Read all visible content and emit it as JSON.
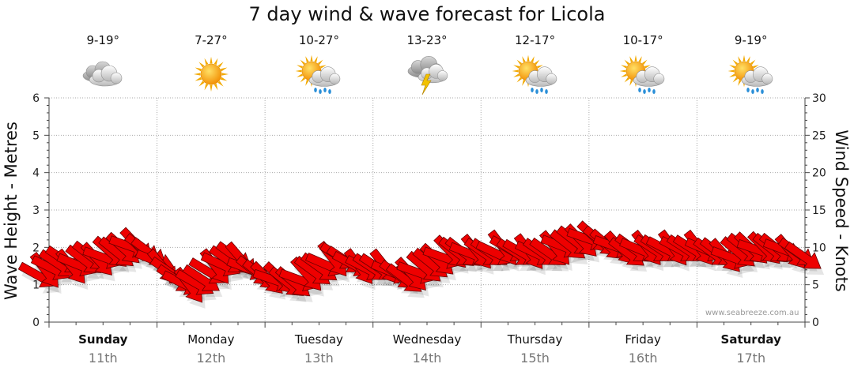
{
  "chart_data": {
    "type": "line",
    "title": "7 day wind & wave forecast for Licola",
    "ylabel_left": "Wave Height - Metres",
    "ylabel_right": "Wind Speed - Knots",
    "ylim_left": [
      0,
      6
    ],
    "ylim_right": [
      0,
      30
    ],
    "left_ticks": [
      "0",
      "1",
      "2",
      "3",
      "4",
      "5",
      "6"
    ],
    "right_ticks": [
      "0",
      "5",
      "10",
      "15",
      "20",
      "25",
      "30"
    ],
    "grid": true,
    "days": [
      {
        "name": "Sunday",
        "date": "11th",
        "temp": "9-19°",
        "icon": "cloud-icon",
        "bold": true
      },
      {
        "name": "Monday",
        "date": "12th",
        "temp": "7-27°",
        "icon": "sun-icon",
        "bold": false
      },
      {
        "name": "Tuesday",
        "date": "13th",
        "temp": "10-27°",
        "icon": "sun-rain-icon",
        "bold": false
      },
      {
        "name": "Wednesday",
        "date": "14th",
        "temp": "13-23°",
        "icon": "storm-icon",
        "bold": false
      },
      {
        "name": "Thursday",
        "date": "15th",
        "temp": "12-17°",
        "icon": "sun-rain-icon",
        "bold": false
      },
      {
        "name": "Friday",
        "date": "16th",
        "temp": "10-17°",
        "icon": "sun-rain-icon",
        "bold": false
      },
      {
        "name": "Saturday",
        "date": "17th",
        "temp": "9-19°",
        "icon": "sun-rain-icon",
        "bold": true
      }
    ],
    "wind_series": {
      "name": "Wind Speed",
      "unit": "knots",
      "arrow_color": "#ee0000",
      "values": [
        6,
        6.5,
        7,
        7.5,
        8,
        7,
        7.5,
        8,
        8.5,
        8,
        8.5,
        9,
        9,
        9.5,
        10,
        10,
        9.5,
        9,
        8,
        7,
        6.5,
        5.5,
        5,
        4.5,
        5,
        5.5,
        6.5,
        7,
        7.5,
        8,
        8.5,
        8,
        7,
        6.5,
        6,
        5.5,
        5.5,
        5.5,
        5,
        5,
        5.5,
        6,
        6.5,
        7,
        7.5,
        8,
        8.5,
        8,
        7.5,
        7,
        7,
        7,
        7,
        7,
        6.5,
        6,
        5.5,
        6,
        6.5,
        7,
        7.5,
        8,
        8.5,
        9,
        9,
        9,
        9,
        9,
        9,
        9,
        9,
        9.5,
        9.5,
        9,
        9,
        9,
        9,
        9,
        9,
        9.5,
        10,
        10,
        10.5,
        10.5,
        11,
        11,
        10.5,
        10,
        10,
        9.5,
        9,
        9.5,
        9.5,
        9.5,
        9.5,
        9.5,
        9.5,
        9.5,
        9.5,
        9.5,
        9.5,
        9.5,
        9.5,
        9,
        9,
        8.5,
        8.5,
        9,
        9.5,
        9.5,
        9.5,
        9.5,
        9.5,
        9.5,
        9.5,
        9,
        9,
        8.5
      ]
    },
    "credit": "www.seabreeze.com.au"
  }
}
